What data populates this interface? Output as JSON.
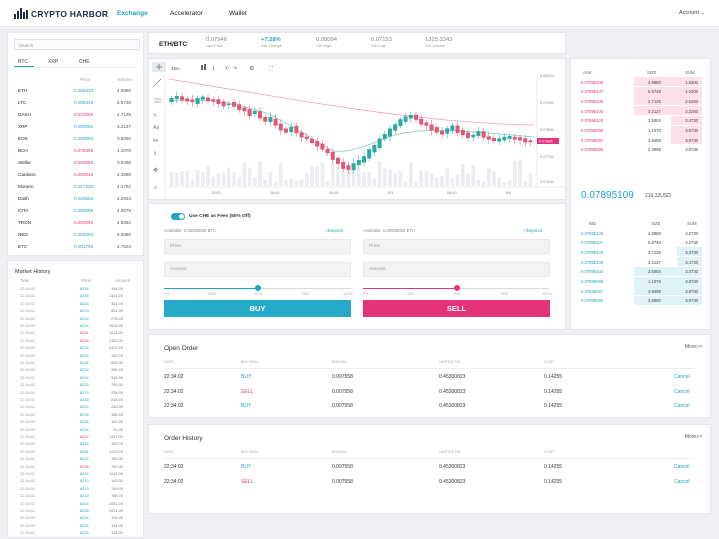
{
  "app": {
    "logo_text": "CRYPTO HARBOR",
    "nav": [
      "Exchange",
      "Accelerator",
      "Wallet"
    ],
    "account": "Account ⌄"
  },
  "sidebar": {
    "search_placeholder": "Search",
    "tabs": [
      "BTC",
      "XRP",
      "CHE"
    ],
    "col_price": "Price",
    "col_volume": "Volume",
    "coins": [
      {
        "name": "ETH",
        "price": "0.056433",
        "volume": "4.8980",
        "dir": "up"
      },
      {
        "name": "LTC",
        "price": "0.005423",
        "volume": "5.9748",
        "dir": "up"
      },
      {
        "name": "DASH",
        "price": "0.023456",
        "volume": "2.7125",
        "dir": "down"
      },
      {
        "name": "XRP",
        "price": "0.000082",
        "volume": "3.2137",
        "dir": "up"
      },
      {
        "name": "EOS",
        "price": "0.000684",
        "volume": "3.5004",
        "dir": "up"
      },
      {
        "name": "BCH",
        "price": "0.078456",
        "volume": "1.1078",
        "dir": "down"
      },
      {
        "name": "Stellar",
        "price": "0.000063",
        "volume": "3.9498",
        "dir": "down"
      },
      {
        "name": "Cardano",
        "price": "0.000015",
        "volume": "2.3998",
        "dir": "down"
      },
      {
        "name": "Monero",
        "price": "0.017228",
        "volume": "4.4752",
        "dir": "up"
      },
      {
        "name": "Dash",
        "price": "0.029603",
        "volume": "2.2643",
        "dir": "up"
      },
      {
        "name": "IOTA",
        "price": "0.000085",
        "volume": "4.0079",
        "dir": "up"
      },
      {
        "name": "TRON",
        "price": "0.000093",
        "volume": "4.5652",
        "dir": "down"
      },
      {
        "name": "NEO",
        "price": "0.003464",
        "volume": "5.5980",
        "dir": "up"
      },
      {
        "name": "ETC",
        "price": "0.001793",
        "volume": "2.7823",
        "dir": "up"
      }
    ]
  },
  "market_history": {
    "title": "Market History",
    "col_time": "Time",
    "col_price": "Price",
    "col_volume": "Amount",
    "rows": [
      {
        "t": "22:34:02",
        "p": "8234",
        "v": "194.00",
        "dir": "up"
      },
      {
        "t": "22:34:02",
        "p": "8235",
        "v": "1141.00",
        "dir": "up"
      },
      {
        "t": "22:34:02",
        "p": "8223",
        "v": "321.00",
        "dir": "up"
      },
      {
        "t": "22:34:02",
        "p": "8223",
        "v": "554.00",
        "dir": "up"
      },
      {
        "t": "22:34:02",
        "p": "8224",
        "v": "276.00",
        "dir": "up"
      },
      {
        "t": "22:34:02",
        "p": "8224",
        "v": "1024.00",
        "dir": "up"
      },
      {
        "t": "22:34:02",
        "p": "8261",
        "v": "1014.00",
        "dir": "down"
      },
      {
        "t": "22:34:02",
        "p": "8235",
        "v": "1363.00",
        "dir": "down"
      },
      {
        "t": "22:34:02",
        "p": "8234",
        "v": "1370.00",
        "dir": "up"
      },
      {
        "t": "22:34:02",
        "p": "8235",
        "v": "145.00",
        "dir": "up"
      },
      {
        "t": "22:34:02",
        "p": "8234",
        "v": "835.00",
        "dir": "up"
      },
      {
        "t": "22:34:02",
        "p": "8224",
        "v": "286.00",
        "dir": "up"
      },
      {
        "t": "22:34:02",
        "p": "8224",
        "v": "315.00",
        "dir": "up"
      },
      {
        "t": "22:34:02",
        "p": "8225",
        "v": "790.00",
        "dir": "up"
      },
      {
        "t": "22:34:02",
        "p": "8279",
        "v": "235.00",
        "dir": "up"
      },
      {
        "t": "22:34:02",
        "p": "8235",
        "v": "218.00",
        "dir": "up"
      },
      {
        "t": "22:34:02",
        "p": "8224",
        "v": "245.00",
        "dir": "up"
      },
      {
        "t": "22:34:02",
        "p": "8235",
        "v": "186.00",
        "dir": "up"
      },
      {
        "t": "22:34:02",
        "p": "8235",
        "v": "187.00",
        "dir": "up"
      },
      {
        "t": "22:34:02",
        "p": "8224",
        "v": "91.00",
        "dir": "up"
      },
      {
        "t": "22:34:02",
        "p": "8222",
        "v": "1147.00",
        "dir": "down"
      },
      {
        "t": "22:34:02",
        "p": "8245",
        "v": "183.00",
        "dir": "up"
      },
      {
        "t": "22:34:02",
        "p": "8261",
        "v": "1213.00",
        "dir": "up"
      },
      {
        "t": "22:34:02",
        "p": "8224",
        "v": "787.00",
        "dir": "up"
      },
      {
        "t": "22:34:02",
        "p": "8235",
        "v": "767.00",
        "dir": "down"
      },
      {
        "t": "22:34:02",
        "p": "8224",
        "v": "1041.00",
        "dir": "up"
      },
      {
        "t": "22:34:02",
        "p": "8210",
        "v": "149.00",
        "dir": "up"
      },
      {
        "t": "22:34:02",
        "p": "8213",
        "v": "749.00",
        "dir": "up"
      },
      {
        "t": "22:34:02",
        "p": "8213",
        "v": "768.00",
        "dir": "up"
      },
      {
        "t": "22:34:02",
        "p": "8224",
        "v": "1081.00",
        "dir": "up"
      },
      {
        "t": "22:34:02",
        "p": "8235",
        "v": "1031.00",
        "dir": "up"
      },
      {
        "t": "22:34:02",
        "p": "8224",
        "v": "125.00",
        "dir": "up"
      },
      {
        "t": "22:34:02",
        "p": "8225",
        "v": "131.00",
        "dir": "up"
      },
      {
        "t": "22:34:02",
        "p": "8225",
        "v": "131.00",
        "dir": "up"
      }
    ]
  },
  "ticker": {
    "pair": "ETH/BTC",
    "stats": [
      {
        "value": "0.07946",
        "label": "Last Price",
        "color": "#888888"
      },
      {
        "value": "+7.28%",
        "label": "24h Change",
        "color": "#1ea5c4"
      },
      {
        "value": "0.08094",
        "label": "24h High",
        "color": "#888888"
      },
      {
        "value": "0.07153",
        "label": "24h Low",
        "color": "#888888"
      },
      {
        "value": "1325.3343",
        "label": "24h Volume",
        "color": "#888888"
      }
    ]
  },
  "chart": {
    "interval": "15m",
    "price_labels": [
      "0.08000",
      "0.07900",
      "0.07800",
      "0.07700",
      "0.07600"
    ],
    "current_price": "0.07895",
    "time_labels": [
      "13:00",
      "18:00",
      "00:00",
      "6/1",
      "06:00",
      "6/6"
    ]
  },
  "order_form": {
    "fee_label": "Use CHE as Fees (50% Off)",
    "buy": {
      "available": "Available: 0.00000000 BTC",
      "deposit": "+Deposit",
      "price_placeholder": "Price",
      "amount_placeholder": "Amount",
      "button": "BUY",
      "slider_level": 0.5
    },
    "sell": {
      "available": "Available: 0.00000000 ETH",
      "deposit": "+Deposit",
      "price_placeholder": "Price",
      "amount_placeholder": "Amount",
      "button": "SELL",
      "slider_level": 0.5
    },
    "pct_marks": [
      "0%",
      "25%",
      "50%",
      "75%",
      "100%"
    ]
  },
  "orderbook": {
    "headers": [
      "ASK",
      "SIZE",
      "SUM"
    ],
    "bid_headers": [
      "BID",
      "SIZE",
      "SUM"
    ],
    "asks": [
      {
        "price": "0.07895109",
        "size": "4.9980",
        "sum": "1.5300",
        "depth": 0.55
      },
      {
        "price": "0.07895107",
        "size": "5.9748",
        "sum": "1.5300",
        "depth": 0.55
      },
      {
        "price": "0.07895106",
        "size": "2.7125",
        "sum": "2.5250",
        "depth": 0.55
      },
      {
        "price": "0.07895105",
        "size": "3.2127",
        "sum": "3.2250",
        "depth": 0.55
      },
      {
        "price": "0.07895103",
        "size": "3.5004",
        "sum": "3.4730",
        "depth": 0.25
      },
      {
        "price": "0.07895099",
        "size": "1.1078",
        "sum": "3.8730",
        "depth": 0.25
      },
      {
        "price": "0.07895097",
        "size": "3.9498",
        "sum": "3.8730",
        "depth": 0.25
      },
      {
        "price": "0.07895095",
        "size": "2.3998",
        "sum": "3.8730",
        "depth": 0.0
      }
    ],
    "mid_price": "0.07895109",
    "mid_usd": "219.32USD",
    "bids": [
      {
        "price": "0.07895109",
        "size": "4.9980",
        "sum": "3.2730",
        "depth": 0.0
      },
      {
        "price": "0.07895107",
        "size": "5.9748",
        "sum": "3.2730",
        "depth": 0.0
      },
      {
        "price": "0.07895106",
        "size": "2.7125",
        "sum": "3.3730",
        "depth": 0.2
      },
      {
        "price": "0.07895105",
        "size": "3.2137",
        "sum": "3.4730",
        "depth": 0.2
      },
      {
        "price": "0.07895103",
        "size": "3.5004",
        "sum": "3.4730",
        "depth": 0.55
      },
      {
        "price": "0.07895099",
        "size": "1.1078",
        "sum": "3.8730",
        "depth": 0.55
      },
      {
        "price": "0.07895097",
        "size": "3.9498",
        "sum": "3.8730",
        "depth": 0.55
      },
      {
        "price": "0.07895095",
        "size": "3.8990",
        "sum": "3.8730",
        "depth": 0.55
      }
    ]
  },
  "open_orders": {
    "title": "Open Order",
    "more": "More>>",
    "headers": [
      "DATE",
      "BUY/SELL",
      "BID/ASK",
      "UNITS(ETH)",
      "COST",
      ""
    ],
    "rows": [
      {
        "date": "22:34:02",
        "side": "BUY",
        "price": "0.007558",
        "units": "0.45300823",
        "cost": "0.14255",
        "action": "Cancel"
      },
      {
        "date": "22:34:02",
        "side": "SELL",
        "price": "0.007558",
        "units": "0.45300823",
        "cost": "0.14255",
        "action": "Cancel"
      },
      {
        "date": "22:34:02",
        "side": "BUY",
        "price": "0.007558",
        "units": "0.45300823",
        "cost": "0.14255",
        "action": "Cancel"
      }
    ]
  },
  "order_history": {
    "title": "Order History",
    "more": "More>>",
    "headers": [
      "DATE",
      "BUY/SELL",
      "BID/ASK",
      "UNITS(ETH)",
      "COST",
      ""
    ],
    "rows": [
      {
        "date": "22:34:02",
        "side": "BUY",
        "price": "0.007558",
        "units": "0.45300823",
        "cost": "0.14255",
        "action": "Cancel"
      },
      {
        "date": "22:34:02",
        "side": "SELL",
        "price": "0.007558",
        "units": "0.45300823",
        "cost": "0.14255",
        "action": "Cancel"
      }
    ]
  }
}
